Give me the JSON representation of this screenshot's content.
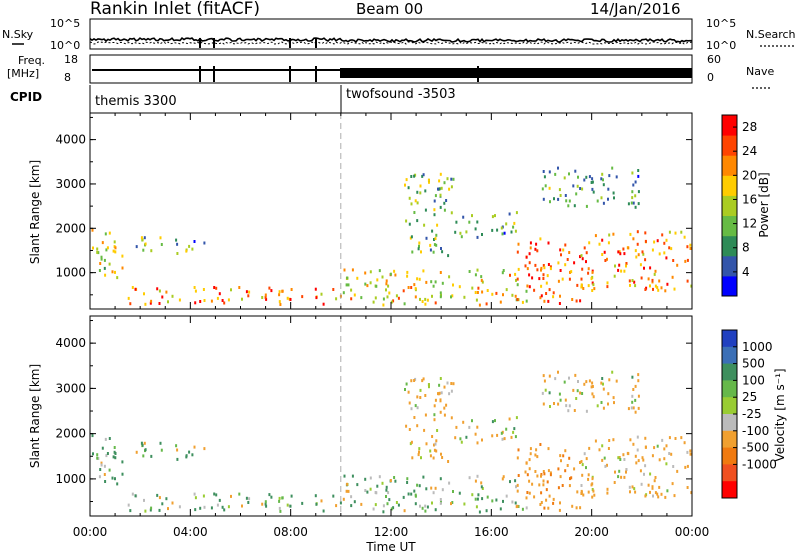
{
  "header": {
    "station": "Rankin Inlet (fitACF)",
    "beam": "Beam 00",
    "date": "14/Jan/2016"
  },
  "strip_labels": {
    "nsky": "N.Sky",
    "nsearch": "N.Search",
    "freq_line1": "Freq.",
    "freq_line2": "[MHz]",
    "nave": "Nave",
    "cpid": "CPID",
    "noise_ticks": [
      "10^5",
      "10^0"
    ],
    "freq_ticks": [
      "18",
      "8"
    ],
    "nave_ticks": [
      "60",
      "0"
    ]
  },
  "cpid_segments": [
    "themis 3300",
    "twofsound -3503"
  ],
  "colors": {
    "power_scale": [
      "#0000ff",
      "#3355aa",
      "#2e8b57",
      "#66bb44",
      "#aacc22",
      "#ffcc00",
      "#ff8800",
      "#ff4400",
      "#ff0000"
    ],
    "velocity_scale": [
      "#2040c0",
      "#3b6fb6",
      "#3e8f5e",
      "#66b84a",
      "#99cc33",
      "#bbbbbb",
      "#f0a030",
      "#f07a10",
      "#f05020",
      "#ff0000"
    ],
    "data_gap_line": "#999999"
  },
  "chart_data": [
    {
      "type": "heatmap",
      "title": "Power",
      "xlabel": "",
      "ylabel": "Slant Range [km]",
      "x_ticks": [
        "00:00",
        "04:00",
        "08:00",
        "12:00",
        "16:00",
        "20:00",
        "00:00"
      ],
      "y_ticks": [
        "1000",
        "2000",
        "3000",
        "4000"
      ],
      "xlim": [
        0,
        24
      ],
      "ylim": [
        180,
        4600
      ],
      "colorbar": {
        "label": "Power [dB]",
        "ticks": [
          "4",
          "8",
          "12",
          "16",
          "20",
          "24",
          "28"
        ],
        "range": [
          0,
          30
        ]
      },
      "echo_regions": [
        {
          "t0": 0.0,
          "t1": 1.3,
          "r0": 900,
          "r1": 2100,
          "mean": 16
        },
        {
          "t0": 1.5,
          "t1": 3.0,
          "r0": 1500,
          "r1": 1900,
          "mean": 12
        },
        {
          "t0": 3.3,
          "t1": 4.6,
          "r0": 1400,
          "r1": 1800,
          "mean": 10
        },
        {
          "t0": 1.5,
          "t1": 10.0,
          "r0": 300,
          "r1": 700,
          "mean": 22
        },
        {
          "t0": 10.0,
          "t1": 17.5,
          "r0": 300,
          "r1": 1100,
          "mean": 18
        },
        {
          "t0": 12.5,
          "t1": 14.5,
          "r0": 1400,
          "r1": 3300,
          "mean": 12
        },
        {
          "t0": 14.5,
          "t1": 17.0,
          "r0": 1800,
          "r1": 2400,
          "mean": 10
        },
        {
          "t0": 17.0,
          "t1": 19.5,
          "r0": 300,
          "r1": 1800,
          "mean": 24
        },
        {
          "t0": 19.5,
          "t1": 24.0,
          "r0": 600,
          "r1": 2000,
          "mean": 22
        },
        {
          "t0": 18.0,
          "t1": 22.0,
          "r0": 2500,
          "r1": 3400,
          "mean": 10
        }
      ]
    },
    {
      "type": "heatmap",
      "title": "Velocity",
      "xlabel": "Time UT",
      "ylabel": "Slant Range [km]",
      "x_ticks": [
        "00:00",
        "04:00",
        "08:00",
        "12:00",
        "16:00",
        "20:00",
        "00:00"
      ],
      "y_ticks": [
        "1000",
        "2000",
        "3000",
        "4000"
      ],
      "xlim": [
        0,
        24
      ],
      "ylim": [
        180,
        4600
      ],
      "colorbar": {
        "label": "Velocity [m s⁻¹]",
        "ticks": [
          "1000",
          "500",
          "100",
          "25",
          "-25",
          "-100",
          "-500",
          "-1000"
        ]
      },
      "echo_regions": [
        {
          "t0": 0.0,
          "t1": 1.3,
          "r0": 900,
          "r1": 2100,
          "mean": 100
        },
        {
          "t0": 1.5,
          "t1": 3.0,
          "r0": 1500,
          "r1": 1900,
          "mean": 50
        },
        {
          "t0": 3.3,
          "t1": 4.6,
          "r0": 1400,
          "r1": 1800,
          "mean": 50
        },
        {
          "t0": 1.5,
          "t1": 10.0,
          "r0": 300,
          "r1": 700,
          "mean": 100
        },
        {
          "t0": 10.0,
          "t1": 17.5,
          "r0": 300,
          "r1": 1100,
          "mean": 100
        },
        {
          "t0": 12.5,
          "t1": 14.5,
          "r0": 1400,
          "r1": 3300,
          "mean": -200
        },
        {
          "t0": 14.5,
          "t1": 17.0,
          "r0": 1800,
          "r1": 2400,
          "mean": -100
        },
        {
          "t0": 17.0,
          "t1": 19.5,
          "r0": 300,
          "r1": 1800,
          "mean": -400
        },
        {
          "t0": 19.5,
          "t1": 24.0,
          "r0": 600,
          "r1": 2000,
          "mean": -200
        },
        {
          "t0": 18.0,
          "t1": 22.0,
          "r0": 2500,
          "r1": 3400,
          "mean": -100
        }
      ]
    }
  ]
}
